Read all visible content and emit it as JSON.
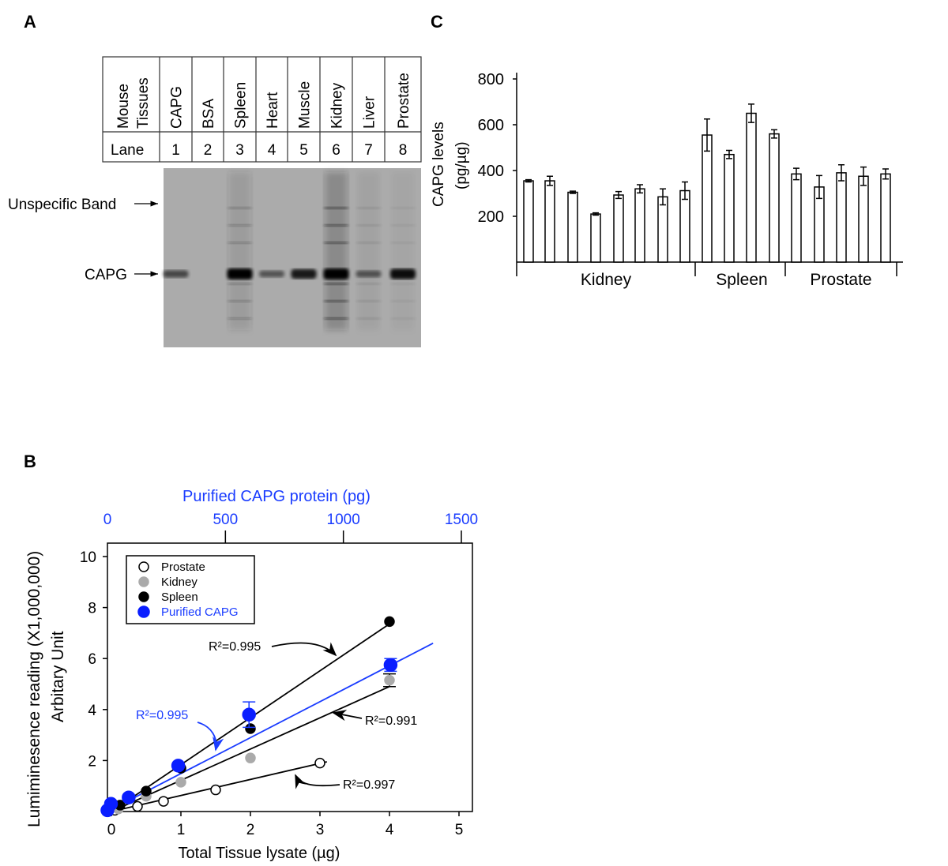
{
  "panels": {
    "a": "A",
    "b": "B",
    "c": "C"
  },
  "blot": {
    "header_label_line1": "Mouse",
    "header_label_line2": "Tissues",
    "lane_label": "Lane",
    "lanes": [
      {
        "tissue": "CAPG",
        "lane": "1",
        "capg_band": 0.45,
        "extra": 0
      },
      {
        "tissue": "BSA",
        "lane": "2",
        "capg_band": 0.0,
        "extra": 0
      },
      {
        "tissue": "Spleen",
        "lane": "3",
        "capg_band": 1.0,
        "extra": 0.35
      },
      {
        "tissue": "Heart",
        "lane": "4",
        "capg_band": 0.35,
        "extra": 0
      },
      {
        "tissue": "Muscle",
        "lane": "5",
        "capg_band": 0.8,
        "extra": 0
      },
      {
        "tissue": "Kidney",
        "lane": "6",
        "capg_band": 1.0,
        "extra": 0.7
      },
      {
        "tissue": "Liver",
        "lane": "7",
        "capg_band": 0.35,
        "extra": 0.15
      },
      {
        "tissue": "Prostate",
        "lane": "8",
        "capg_band": 0.9,
        "extra": 0.1
      }
    ],
    "unspecific_label": "Unspecific Band",
    "capg_label": "CAPG"
  },
  "chart_data": [
    {
      "type": "bar",
      "panel": "C",
      "ylabel_line1": "CAPG levels",
      "ylabel_line2": "(pg/µg)",
      "ylim": [
        0,
        800
      ],
      "yticks": [
        "200",
        "400",
        "600",
        "800"
      ],
      "groups": [
        {
          "name": "Kidney",
          "values": [
            355,
            355,
            305,
            210,
            293,
            320,
            285,
            312
          ],
          "errors": [
            5,
            20,
            5,
            5,
            15,
            18,
            35,
            38
          ]
        },
        {
          "name": "Spleen",
          "values": [
            555,
            470,
            650,
            560
          ],
          "errors": [
            70,
            18,
            40,
            18
          ]
        },
        {
          "name": "Prostate",
          "values": [
            385,
            328,
            390,
            375,
            385
          ],
          "errors": [
            25,
            50,
            35,
            40,
            22
          ]
        }
      ]
    },
    {
      "type": "scatter",
      "panel": "B",
      "xlabel": "Total Tissue lysate (µg)",
      "x2label": "Purified CAPG protein (pg)",
      "ylabel_line1": "Lumiminesence reading (X1,000,000)",
      "ylabel_line2": "Arbitary Unit",
      "xlim": [
        0,
        5
      ],
      "x2lim": [
        0,
        1500
      ],
      "ylim": [
        0,
        10
      ],
      "xticks": [
        "0",
        "1",
        "2",
        "3",
        "4",
        "5"
      ],
      "x2ticks": [
        "0",
        "500",
        "1000",
        "1500"
      ],
      "yticks": [
        "2",
        "4",
        "6",
        "8",
        "10"
      ],
      "legend_position": "top-left",
      "series": [
        {
          "name": "Prostate",
          "style": "open",
          "color": "#000000",
          "points": [
            [
              0.05,
              0.05
            ],
            [
              0.375,
              0.2
            ],
            [
              0.75,
              0.4
            ],
            [
              1.5,
              0.85
            ],
            [
              3,
              1.9
            ]
          ],
          "errors": [],
          "fit_end": [
            3.1,
            1.95
          ],
          "r2": "R²=0.997"
        },
        {
          "name": "Kidney",
          "style": "filled",
          "color": "#aaaaaa",
          "points": [
            [
              0.1,
              0.1
            ],
            [
              0.5,
              0.6
            ],
            [
              1,
              1.15
            ],
            [
              2,
              2.1
            ],
            [
              4,
              5.15
            ]
          ],
          "errors": [
            0,
            0,
            0,
            0,
            0.25
          ],
          "fit_end": [
            4,
            4.9
          ],
          "r2": "R²=0.991"
        },
        {
          "name": "Spleen",
          "style": "filled",
          "color": "#000000",
          "points": [
            [
              0.125,
              0.25
            ],
            [
              0.25,
              0.5
            ],
            [
              0.5,
              0.8
            ],
            [
              1,
              1.7
            ],
            [
              2,
              3.25
            ],
            [
              4,
              7.45
            ]
          ],
          "errors": [],
          "fit_end": [
            4.05,
            7.45
          ],
          "r2": "R²=0.995"
        },
        {
          "name": "Purified CAPG",
          "style": "filled",
          "color": "#0a1eff",
          "axis": "top",
          "points": [
            [
              0,
              0.05
            ],
            [
              15,
              0.3
            ],
            [
              90,
              0.55
            ],
            [
              300,
              1.8
            ],
            [
              600,
              3.8
            ],
            [
              1200,
              5.75
            ]
          ],
          "errors": [
            0,
            0,
            0,
            0,
            0.5,
            0.25
          ],
          "fit_end": [
            1380,
            6.6
          ],
          "r2": "R²=0.995"
        }
      ]
    }
  ]
}
